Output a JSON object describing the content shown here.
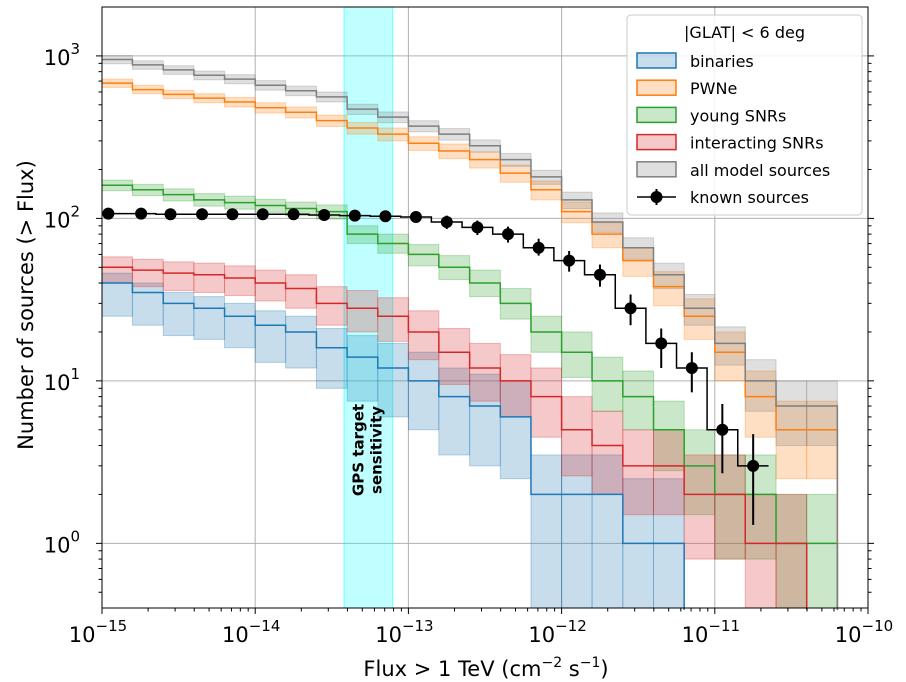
{
  "chart_data": {
    "type": "line",
    "title": "",
    "xlabel": "Flux > 1 TeV (cm⁻² s⁻¹)",
    "xlabel_parts": {
      "main": "Flux > 1 TeV (cm",
      "exp1": "−2",
      "mid": " s",
      "exp2": "−1",
      "end": ")"
    },
    "ylabel": "Number of sources (> Flux)",
    "xscale": "log",
    "yscale": "log",
    "xlim": [
      1e-15,
      1e-10
    ],
    "ylim": [
      0.4,
      2000
    ],
    "grid": true,
    "x_ticks": [
      {
        "value": 1e-15,
        "base": "10",
        "exp": "−15"
      },
      {
        "value": 1e-14,
        "base": "10",
        "exp": "−14"
      },
      {
        "value": 1e-13,
        "base": "10",
        "exp": "−13"
      },
      {
        "value": 1e-12,
        "base": "10",
        "exp": "−12"
      },
      {
        "value": 1e-11,
        "base": "10",
        "exp": "−11"
      },
      {
        "value": 1e-10,
        "base": "10",
        "exp": "−10"
      }
    ],
    "y_ticks": [
      {
        "value": 1,
        "base": "10",
        "exp": "0"
      },
      {
        "value": 10,
        "base": "10",
        "exp": "1"
      },
      {
        "value": 100,
        "base": "10",
        "exp": "2"
      },
      {
        "value": 1000,
        "base": "10",
        "exp": "3"
      }
    ],
    "annotation": {
      "lines": [
        "GPS target",
        "sensitivity"
      ],
      "band_x_range": [
        3.8e-14,
        7.9e-14
      ],
      "band_color": "#00ffff"
    },
    "legend": {
      "title": "|GLAT| < 6 deg",
      "placement": "top-right",
      "entries": [
        "binaries",
        "PWNe",
        "young SNRs",
        "interacting SNRs",
        "all model sources",
        "known sources"
      ]
    },
    "step_x": [
      1e-15,
      1.58e-15,
      2.51e-15,
      3.98e-15,
      6.31e-15,
      1e-14,
      1.58e-14,
      2.51e-14,
      3.98e-14,
      6.31e-14,
      1e-13,
      1.58e-13,
      2.51e-13,
      3.98e-13,
      6.31e-13,
      1e-12,
      1.58e-12,
      2.51e-12,
      3.98e-12,
      6.31e-12,
      1e-11,
      1.58e-11,
      2.51e-11,
      3.98e-11,
      6.31e-11
    ],
    "series": [
      {
        "name": "binaries",
        "color": "#1f77b4",
        "values": [
          40,
          35,
          30,
          28,
          25,
          22,
          20,
          16,
          14,
          12,
          10,
          8,
          7,
          6,
          2,
          2,
          2,
          1,
          1,
          null,
          null,
          null,
          null,
          null
        ],
        "lower": [
          25,
          22,
          19,
          18,
          16,
          13,
          12,
          9,
          7.5,
          6,
          5,
          3.5,
          3,
          2.5,
          0.4,
          0.4,
          0.4,
          0.4,
          0.4,
          null,
          null,
          null,
          null,
          null
        ],
        "upper": [
          46,
          40,
          35,
          33,
          30,
          27,
          25,
          21,
          19,
          17,
          15,
          12,
          11,
          10,
          3.5,
          3.5,
          3.5,
          2.5,
          2.5,
          null,
          null,
          null,
          null,
          null
        ]
      },
      {
        "name": "PWNe",
        "color": "#ff7f0e",
        "values": [
          680,
          620,
          580,
          550,
          520,
          480,
          450,
          400,
          360,
          330,
          290,
          260,
          230,
          190,
          150,
          110,
          80,
          55,
          38,
          25,
          15,
          8,
          5,
          5
        ],
        "lower": [
          640,
          585,
          545,
          515,
          485,
          445,
          415,
          368,
          330,
          300,
          262,
          233,
          204,
          167,
          130,
          94,
          66,
          44,
          29,
          18,
          10,
          4.5,
          2.5,
          2.5
        ],
        "upper": [
          720,
          660,
          615,
          585,
          555,
          515,
          485,
          432,
          390,
          360,
          318,
          287,
          256,
          213,
          170,
          126,
          94,
          66,
          47,
          32,
          20,
          11.5,
          7.5,
          7.5
        ]
      },
      {
        "name": "young SNRs",
        "color": "#2ca02c",
        "values": [
          160,
          150,
          140,
          130,
          125,
          120,
          115,
          110,
          80,
          70,
          60,
          50,
          40,
          30,
          20,
          15,
          10,
          8,
          5,
          3,
          2,
          2,
          1,
          1
        ],
        "lower": [
          148,
          138,
          128,
          119,
          114,
          109,
          104,
          99,
          70,
          61,
          51,
          42,
          33,
          24,
          15,
          10.5,
          6.5,
          5,
          2.8,
          1.5,
          0.8,
          0.8,
          0.4,
          0.4
        ],
        "upper": [
          172,
          162,
          152,
          142,
          137,
          131,
          126,
          121,
          90,
          80,
          69,
          59,
          48,
          37,
          25,
          20,
          14,
          11.5,
          7.5,
          5,
          3.5,
          3.5,
          2,
          2
        ]
      },
      {
        "name": "interacting SNRs",
        "color": "#d62728",
        "values": [
          50,
          48,
          46,
          45,
          43,
          40,
          37,
          30,
          28,
          25,
          20,
          15,
          12,
          10,
          8,
          5,
          4,
          3,
          3,
          2,
          2,
          1,
          1,
          null
        ],
        "lower": [
          40,
          38,
          36,
          35,
          33.5,
          31,
          28,
          22,
          20,
          17.5,
          13.5,
          9.5,
          7.5,
          6,
          4.5,
          2.6,
          2,
          1.5,
          1.5,
          0.8,
          0.8,
          0.4,
          0.4,
          null
        ],
        "upper": [
          58,
          56,
          54,
          53,
          51,
          48,
          45,
          38,
          36,
          32.5,
          27,
          21,
          17,
          14.5,
          12,
          8,
          6.5,
          5,
          5,
          3.5,
          3.5,
          2,
          2,
          null
        ]
      },
      {
        "name": "all model sources",
        "color": "#7f7f7f",
        "values": [
          950,
          880,
          820,
          760,
          720,
          660,
          610,
          560,
          470,
          420,
          370,
          330,
          280,
          230,
          180,
          130,
          95,
          66,
          45,
          28,
          17,
          10,
          7,
          7
        ],
        "lower": [
          895,
          827,
          770,
          713,
          674,
          616,
          569,
          521,
          436,
          388,
          341,
          303,
          256,
          209,
          162,
          115,
          82,
          56,
          37,
          22,
          12.5,
          6.5,
          4,
          4
        ],
        "upper": [
          1005,
          933,
          870,
          807,
          766,
          704,
          651,
          599,
          504,
          452,
          399,
          357,
          304,
          251,
          198,
          145,
          108,
          76,
          53,
          34,
          21.5,
          13.5,
          10,
          10
        ]
      }
    ],
    "known_sources": {
      "name": "known sources",
      "color": "#000000",
      "x": [
        1.1e-15,
        1.8e-15,
        2.8e-15,
        4.5e-15,
        7.1e-15,
        1.12e-14,
        1.78e-14,
        2.82e-14,
        4.47e-14,
        7.08e-14,
        1.12e-13,
        1.78e-13,
        2.82e-13,
        4.47e-13,
        7.08e-13,
        1.12e-12,
        1.78e-12,
        2.82e-12,
        4.47e-12,
        7.08e-12,
        1.12e-11,
        1.78e-11
      ],
      "y": [
        107,
        107,
        106,
        106,
        106,
        106,
        106,
        105,
        104,
        103,
        102,
        95,
        88,
        80,
        66,
        55,
        45,
        28,
        17,
        12,
        5,
        3
      ],
      "y_low": [
        105,
        105,
        104,
        104,
        104,
        104,
        104,
        103,
        102,
        101,
        100,
        86,
        79,
        71,
        59,
        47,
        38,
        22,
        12,
        8.5,
        2.7,
        1.3
      ],
      "y_high": [
        109,
        109,
        108,
        108,
        108,
        108,
        108,
        107,
        106,
        105,
        104,
        104,
        97,
        89,
        75,
        63,
        52,
        34,
        21,
        15,
        7.2,
        4.7
      ]
    }
  }
}
